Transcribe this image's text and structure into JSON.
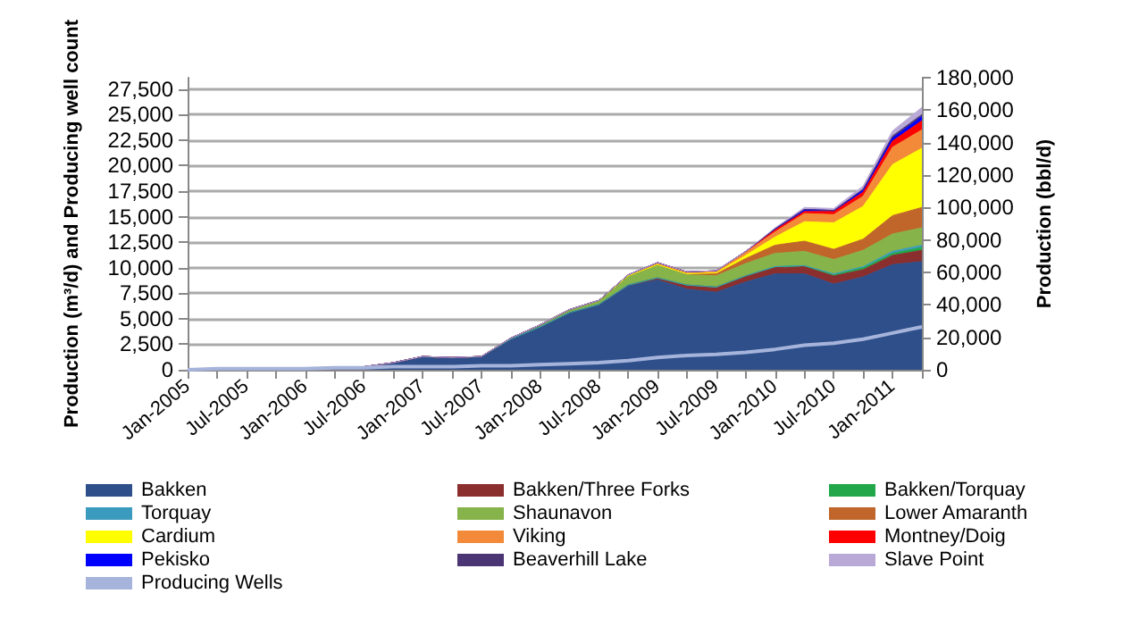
{
  "chart_data": {
    "type": "area",
    "stacked": true,
    "ylabel": "Production (m³/d) and Producing well count",
    "y2label": "Production (bbl/d)",
    "categories": [
      "Jan-2005",
      null,
      "Jul-2005",
      null,
      "Jan-2006",
      null,
      "Jul-2006",
      null,
      "Jan-2007",
      null,
      "Jul-2007",
      null,
      "Jan-2008",
      null,
      "Jul-2008",
      null,
      "Jan-2009",
      null,
      "Jul-2009",
      null,
      "Jan-2010",
      null,
      "Jul-2010",
      null,
      "Jan-2011",
      null
    ],
    "ylim": [
      0,
      28600
    ],
    "yticks": [
      0,
      {
        "value": 2500,
        "label": "2,500"
      },
      {
        "value": 5000,
        "label": "5,000"
      },
      {
        "value": 7500,
        "label": "7,500"
      },
      {
        "value": 10000,
        "label": "10,000"
      },
      {
        "value": 12500,
        "label": "12,500"
      },
      {
        "value": 15000,
        "label": "15,000"
      },
      {
        "value": 17500,
        "label": "17,500"
      },
      {
        "value": 20000,
        "label": "20,000"
      },
      {
        "value": 22500,
        "label": "22,500"
      },
      {
        "value": 25000,
        "label": "25,000"
      },
      {
        "value": 27500,
        "label": "27,500"
      }
    ],
    "y2lim": [
      0,
      180000
    ],
    "y2ticks": [
      0,
      {
        "value": 20000,
        "label": "20,000"
      },
      {
        "value": 40000,
        "label": "40,000"
      },
      {
        "value": 60000,
        "label": "60,000"
      },
      {
        "value": 80000,
        "label": "80,000"
      },
      {
        "value": 100000,
        "label": "100,000"
      },
      {
        "value": 120000,
        "label": "120,000"
      },
      {
        "value": 140000,
        "label": "140,000"
      },
      {
        "value": 160000,
        "label": "160,000"
      },
      {
        "value": 180000,
        "label": "180,000"
      }
    ],
    "grid": "y",
    "legend": "bottom",
    "marker": "none",
    "series": [
      {
        "name": "Bakken",
        "color": "#2e4f8a",
        "values": [
          100,
          100,
          100,
          100,
          100,
          200,
          300,
          700,
          1300,
          1200,
          1300,
          3000,
          4200,
          5600,
          6300,
          8200,
          8800,
          7900,
          7600,
          8600,
          9400,
          9400,
          8400,
          9100,
          10300,
          10600
        ]
      },
      {
        "name": "Bakken/Three Forks",
        "color": "#8b2e2e",
        "values": [
          0,
          0,
          0,
          0,
          0,
          0,
          0,
          0,
          0,
          0,
          0,
          0,
          0,
          0,
          100,
          100,
          200,
          400,
          500,
          600,
          600,
          700,
          800,
          700,
          900,
          1100
        ]
      },
      {
        "name": "Bakken/Torquay",
        "color": "#22a84a",
        "values": [
          0,
          0,
          0,
          0,
          0,
          0,
          0,
          0,
          0,
          0,
          0,
          0,
          0,
          0,
          0,
          0,
          0,
          0,
          0,
          0,
          100,
          100,
          100,
          200,
          200,
          300
        ]
      },
      {
        "name": "Torquay",
        "color": "#3b9bbf",
        "values": [
          0,
          0,
          0,
          0,
          0,
          0,
          0,
          0,
          0,
          0,
          0,
          0,
          0,
          0,
          0,
          0,
          0,
          0,
          0,
          0,
          0,
          0,
          100,
          100,
          200,
          200
        ]
      },
      {
        "name": "Shaunavon",
        "color": "#86b34a",
        "values": [
          0,
          0,
          0,
          0,
          0,
          0,
          0,
          0,
          0,
          0,
          0,
          100,
          200,
          300,
          400,
          900,
          1300,
          1000,
          1100,
          1200,
          1300,
          1400,
          1400,
          1600,
          1700,
          1700
        ]
      },
      {
        "name": "Lower Amaranth",
        "color": "#c0662a",
        "values": [
          0,
          0,
          0,
          0,
          0,
          0,
          0,
          0,
          0,
          0,
          0,
          0,
          0,
          0,
          0,
          0,
          0,
          100,
          200,
          500,
          800,
          1000,
          1000,
          1100,
          1800,
          2000
        ]
      },
      {
        "name": "Cardium",
        "color": "#ffff00",
        "values": [
          0,
          0,
          0,
          0,
          0,
          0,
          0,
          0,
          0,
          0,
          0,
          0,
          0,
          0,
          0,
          0,
          0,
          0,
          100,
          300,
          800,
          1900,
          2600,
          3200,
          5000,
          5800
        ]
      },
      {
        "name": "Viking",
        "color": "#f28a3a",
        "values": [
          0,
          0,
          0,
          0,
          0,
          0,
          0,
          0,
          0,
          0,
          0,
          0,
          0,
          0,
          0,
          100,
          200,
          200,
          200,
          300,
          500,
          800,
          800,
          1000,
          1700,
          1800
        ]
      },
      {
        "name": "Montney/Doig",
        "color": "#ff0000",
        "values": [
          0,
          0,
          0,
          0,
          0,
          0,
          0,
          0,
          0,
          0,
          0,
          0,
          0,
          0,
          0,
          0,
          0,
          0,
          0,
          100,
          200,
          200,
          300,
          400,
          600,
          900
        ]
      },
      {
        "name": "Pekisko",
        "color": "#0000ff",
        "values": [
          0,
          0,
          0,
          0,
          0,
          0,
          0,
          0,
          0,
          0,
          0,
          0,
          0,
          0,
          0,
          0,
          0,
          0,
          0,
          0,
          100,
          200,
          100,
          200,
          300,
          400
        ]
      },
      {
        "name": "Beaverhill Lake",
        "color": "#4b3574",
        "values": [
          0,
          0,
          0,
          0,
          0,
          0,
          0,
          0,
          0,
          0,
          0,
          0,
          0,
          0,
          0,
          0,
          0,
          0,
          0,
          0,
          0,
          0,
          0,
          100,
          200,
          200
        ]
      },
      {
        "name": "Slave Point",
        "color": "#b9a9d6",
        "values": [
          0,
          0,
          0,
          0,
          0,
          0,
          0,
          0,
          0,
          0,
          0,
          0,
          0,
          0,
          0,
          0,
          0,
          0,
          0,
          0,
          100,
          200,
          200,
          300,
          500,
          700
        ]
      },
      {
        "name": "Producing Wells",
        "type": "line",
        "color": "#a6b4dc",
        "values": [
          0,
          100,
          100,
          100,
          100,
          200,
          200,
          300,
          300,
          300,
          400,
          400,
          500,
          600,
          700,
          900,
          1200,
          1400,
          1500,
          1700,
          2000,
          2400,
          2600,
          3000,
          3600,
          4200
        ]
      }
    ]
  }
}
